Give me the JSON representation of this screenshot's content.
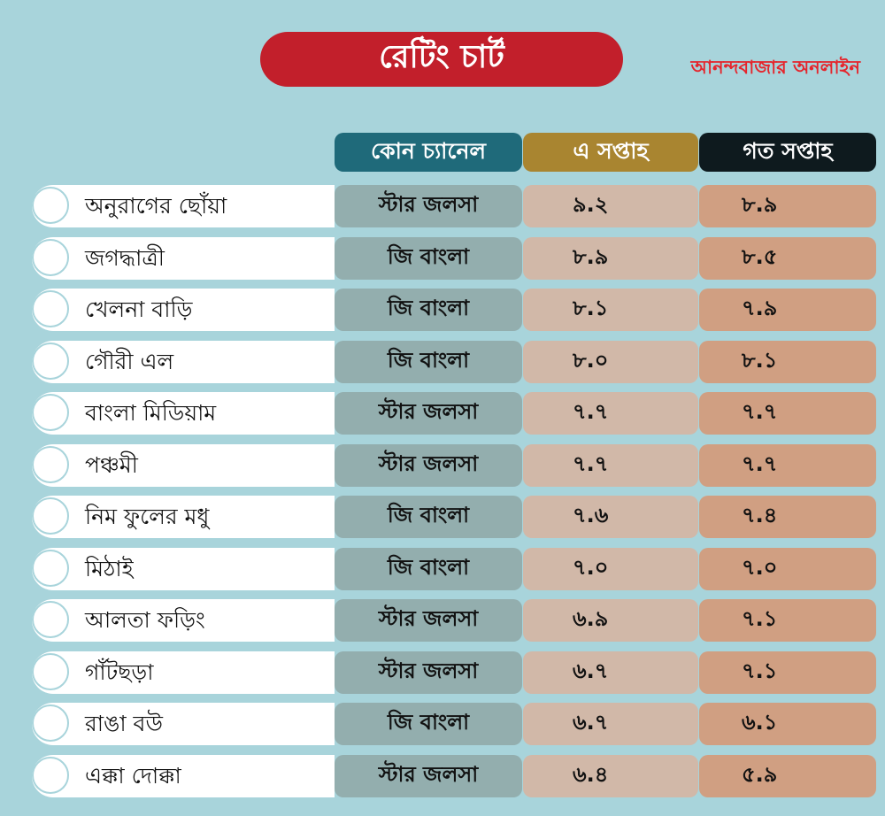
{
  "title": "রেটিং চার্ট",
  "brand": "আনন্দবাজার অনলাইন",
  "colors": {
    "title_bg": "#c21f2b",
    "brand": "#e5252c",
    "background": "#a8d4db"
  },
  "chart_data": {
    "type": "table",
    "columns": [
      "",
      "কোন চ্যানেল",
      "এ সপ্তাহ",
      "গত সপ্তাহ"
    ],
    "rows": [
      {
        "show": "অনুরাগের ছোঁয়া",
        "channel": "স্টার জলসা",
        "this_week": "৯.২",
        "last_week": "৮.৯"
      },
      {
        "show": "জগদ্ধাত্রী",
        "channel": "জি বাংলা",
        "this_week": "৮.৯",
        "last_week": "৮.৫"
      },
      {
        "show": "খেলনা বাড়ি",
        "channel": "জি বাংলা",
        "this_week": "৮.১",
        "last_week": "৭.৯"
      },
      {
        "show": "গৌরী এল",
        "channel": "জি বাংলা",
        "this_week": "৮.০",
        "last_week": "৮.১"
      },
      {
        "show": "বাংলা মিডিয়াম",
        "channel": "স্টার জলসা",
        "this_week": "৭.৭",
        "last_week": "৭.৭"
      },
      {
        "show": "পঞ্চমী",
        "channel": "স্টার জলসা",
        "this_week": "৭.৭",
        "last_week": "৭.৭"
      },
      {
        "show": "নিম ফুলের মধু",
        "channel": "জি বাংলা",
        "this_week": "৭.৬",
        "last_week": "৭.৪"
      },
      {
        "show": "মিঠাই",
        "channel": "জি বাংলা",
        "this_week": "৭.০",
        "last_week": "৭.০"
      },
      {
        "show": "আলতা ফড়িং",
        "channel": "স্টার জলসা",
        "this_week": "৬.৯",
        "last_week": "৭.১"
      },
      {
        "show": "গাঁটছড়া",
        "channel": "স্টার জলসা",
        "this_week": "৬.৭",
        "last_week": "৭.১"
      },
      {
        "show": "রাঙা বউ",
        "channel": "জি বাংলা",
        "this_week": "৬.৭",
        "last_week": "৬.১"
      },
      {
        "show": "এক্কা দোক্কা",
        "channel": "স্টার জলসা",
        "this_week": "৬.৪",
        "last_week": "৫.৯"
      }
    ]
  }
}
